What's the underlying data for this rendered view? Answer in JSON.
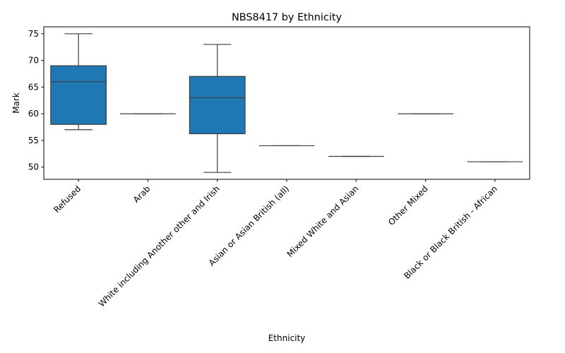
{
  "chart_data": {
    "type": "box",
    "title": "NBS8417 by Ethnicity",
    "xlabel": "Ethnicity",
    "ylabel": "Mark",
    "ylim": [
      47.7,
      76.3
    ],
    "yticks": [
      50,
      55,
      60,
      65,
      70,
      75
    ],
    "box_color": "#1f77b4",
    "line_color": "#3d3d3d",
    "grid": false,
    "categories": [
      "Refused",
      "Arab",
      "White including Another other and Irish",
      "Asian or Asian British (all)",
      "Mixed White and Asian",
      "Other Mixed",
      "Black or Black British - African"
    ],
    "boxes": [
      {
        "category": "Refused",
        "whisker_low": 57,
        "q1": 58,
        "median": 66,
        "q3": 69,
        "whisker_high": 75
      },
      {
        "category": "Arab",
        "whisker_low": 60,
        "q1": 60,
        "median": 60,
        "q3": 60,
        "whisker_high": 60
      },
      {
        "category": "White including Another other and Irish",
        "whisker_low": 49,
        "q1": 56.25,
        "median": 63,
        "q3": 67,
        "whisker_high": 73
      },
      {
        "category": "Asian or Asian British (all)",
        "whisker_low": 54,
        "q1": 54,
        "median": 54,
        "q3": 54,
        "whisker_high": 54
      },
      {
        "category": "Mixed White and Asian",
        "whisker_low": 52,
        "q1": 52,
        "median": 52,
        "q3": 52,
        "whisker_high": 52
      },
      {
        "category": "Other Mixed",
        "whisker_low": 60,
        "q1": 60,
        "median": 60,
        "q3": 60,
        "whisker_high": 60
      },
      {
        "category": "Black or Black British - African",
        "whisker_low": 51,
        "q1": 51,
        "median": 51,
        "q3": 51,
        "whisker_high": 51
      }
    ]
  }
}
